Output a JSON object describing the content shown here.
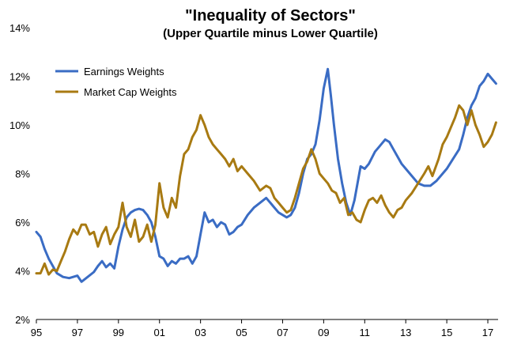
{
  "chart_data": {
    "type": "line",
    "title": "\"Inequality of Sectors\"",
    "subtitle": "(Upper Quartile minus Lower Quartile)",
    "xlabel": "",
    "ylabel": "",
    "xlim": [
      1995,
      2017.5
    ],
    "ylim": [
      2,
      14
    ],
    "x_ticks": [
      1995,
      1997,
      1999,
      2001,
      2003,
      2005,
      2007,
      2009,
      2011,
      2013,
      2015,
      2017
    ],
    "x_tick_labels": [
      "95",
      "97",
      "99",
      "01",
      "03",
      "05",
      "07",
      "09",
      "11",
      "13",
      "15",
      "17"
    ],
    "y_ticks": [
      2,
      4,
      6,
      8,
      10,
      12,
      14
    ],
    "y_tick_labels": [
      "2%",
      "4%",
      "6%",
      "8%",
      "10%",
      "12%",
      "14%"
    ],
    "grid": false,
    "legend_position": "top-left",
    "series": [
      {
        "name": "Earnings Weights",
        "color": "#3A6CC4",
        "points": [
          [
            1995.0,
            5.6
          ],
          [
            1995.2,
            5.4
          ],
          [
            1995.4,
            4.9
          ],
          [
            1995.6,
            4.5
          ],
          [
            1995.8,
            4.2
          ],
          [
            1996.0,
            3.9
          ],
          [
            1996.3,
            3.75
          ],
          [
            1996.6,
            3.7
          ],
          [
            1997.0,
            3.8
          ],
          [
            1997.2,
            3.55
          ],
          [
            1997.5,
            3.75
          ],
          [
            1997.8,
            3.95
          ],
          [
            1998.0,
            4.2
          ],
          [
            1998.2,
            4.4
          ],
          [
            1998.4,
            4.15
          ],
          [
            1998.6,
            4.3
          ],
          [
            1998.8,
            4.1
          ],
          [
            1999.0,
            5.0
          ],
          [
            1999.2,
            5.7
          ],
          [
            1999.4,
            6.2
          ],
          [
            1999.6,
            6.4
          ],
          [
            1999.8,
            6.5
          ],
          [
            2000.0,
            6.55
          ],
          [
            2000.2,
            6.5
          ],
          [
            2000.4,
            6.3
          ],
          [
            2000.6,
            6.0
          ],
          [
            2000.8,
            5.4
          ],
          [
            2001.0,
            4.6
          ],
          [
            2001.2,
            4.5
          ],
          [
            2001.4,
            4.2
          ],
          [
            2001.6,
            4.4
          ],
          [
            2001.8,
            4.3
          ],
          [
            2002.0,
            4.5
          ],
          [
            2002.2,
            4.5
          ],
          [
            2002.4,
            4.6
          ],
          [
            2002.6,
            4.3
          ],
          [
            2002.8,
            4.6
          ],
          [
            2003.0,
            5.5
          ],
          [
            2003.2,
            6.4
          ],
          [
            2003.4,
            6.0
          ],
          [
            2003.6,
            6.1
          ],
          [
            2003.8,
            5.8
          ],
          [
            2004.0,
            6.0
          ],
          [
            2004.2,
            5.9
          ],
          [
            2004.4,
            5.5
          ],
          [
            2004.6,
            5.6
          ],
          [
            2004.8,
            5.8
          ],
          [
            2005.0,
            5.9
          ],
          [
            2005.3,
            6.3
          ],
          [
            2005.6,
            6.6
          ],
          [
            2005.9,
            6.8
          ],
          [
            2006.2,
            7.0
          ],
          [
            2006.4,
            6.8
          ],
          [
            2006.6,
            6.6
          ],
          [
            2006.8,
            6.4
          ],
          [
            2007.0,
            6.3
          ],
          [
            2007.2,
            6.2
          ],
          [
            2007.4,
            6.3
          ],
          [
            2007.6,
            6.6
          ],
          [
            2007.8,
            7.2
          ],
          [
            2008.0,
            8.0
          ],
          [
            2008.2,
            8.6
          ],
          [
            2008.4,
            8.8
          ],
          [
            2008.6,
            9.2
          ],
          [
            2008.8,
            10.2
          ],
          [
            2009.0,
            11.5
          ],
          [
            2009.2,
            12.3
          ],
          [
            2009.35,
            11.2
          ],
          [
            2009.5,
            10.0
          ],
          [
            2009.7,
            8.6
          ],
          [
            2009.9,
            7.6
          ],
          [
            2010.1,
            6.8
          ],
          [
            2010.3,
            6.3
          ],
          [
            2010.5,
            6.9
          ],
          [
            2010.8,
            8.3
          ],
          [
            2011.0,
            8.2
          ],
          [
            2011.2,
            8.4
          ],
          [
            2011.5,
            8.9
          ],
          [
            2011.7,
            9.1
          ],
          [
            2012.0,
            9.4
          ],
          [
            2012.2,
            9.3
          ],
          [
            2012.4,
            9.0
          ],
          [
            2012.6,
            8.7
          ],
          [
            2012.8,
            8.4
          ],
          [
            2013.0,
            8.2
          ],
          [
            2013.3,
            7.9
          ],
          [
            2013.6,
            7.6
          ],
          [
            2013.9,
            7.5
          ],
          [
            2014.2,
            7.5
          ],
          [
            2014.5,
            7.7
          ],
          [
            2014.8,
            8.0
          ],
          [
            2015.0,
            8.2
          ],
          [
            2015.3,
            8.6
          ],
          [
            2015.6,
            9.0
          ],
          [
            2015.8,
            9.6
          ],
          [
            2016.0,
            10.3
          ],
          [
            2016.2,
            10.8
          ],
          [
            2016.4,
            11.1
          ],
          [
            2016.6,
            11.6
          ],
          [
            2016.8,
            11.8
          ],
          [
            2017.0,
            12.1
          ],
          [
            2017.2,
            11.9
          ],
          [
            2017.4,
            11.7
          ]
        ]
      },
      {
        "name": "Market Cap Weights",
        "color": "#A87A12",
        "points": [
          [
            1995.0,
            3.9
          ],
          [
            1995.2,
            3.9
          ],
          [
            1995.4,
            4.3
          ],
          [
            1995.6,
            3.85
          ],
          [
            1995.8,
            4.05
          ],
          [
            1996.0,
            4.0
          ],
          [
            1996.2,
            4.4
          ],
          [
            1996.4,
            4.8
          ],
          [
            1996.6,
            5.3
          ],
          [
            1996.8,
            5.7
          ],
          [
            1997.0,
            5.5
          ],
          [
            1997.2,
            5.9
          ],
          [
            1997.4,
            5.9
          ],
          [
            1997.6,
            5.5
          ],
          [
            1997.8,
            5.6
          ],
          [
            1998.0,
            5.0
          ],
          [
            1998.2,
            5.5
          ],
          [
            1998.4,
            5.8
          ],
          [
            1998.6,
            5.1
          ],
          [
            1998.8,
            5.5
          ],
          [
            1999.0,
            5.8
          ],
          [
            1999.2,
            6.8
          ],
          [
            1999.4,
            5.8
          ],
          [
            1999.6,
            5.4
          ],
          [
            1999.8,
            6.1
          ],
          [
            2000.0,
            5.2
          ],
          [
            2000.2,
            5.4
          ],
          [
            2000.4,
            5.9
          ],
          [
            2000.6,
            5.2
          ],
          [
            2000.8,
            5.9
          ],
          [
            2001.0,
            7.6
          ],
          [
            2001.2,
            6.6
          ],
          [
            2001.4,
            6.2
          ],
          [
            2001.6,
            7.0
          ],
          [
            2001.8,
            6.6
          ],
          [
            2002.0,
            7.9
          ],
          [
            2002.2,
            8.8
          ],
          [
            2002.4,
            9.0
          ],
          [
            2002.6,
            9.5
          ],
          [
            2002.8,
            9.8
          ],
          [
            2003.0,
            10.4
          ],
          [
            2003.2,
            10.0
          ],
          [
            2003.4,
            9.5
          ],
          [
            2003.6,
            9.2
          ],
          [
            2003.8,
            9.0
          ],
          [
            2004.0,
            8.8
          ],
          [
            2004.2,
            8.6
          ],
          [
            2004.4,
            8.3
          ],
          [
            2004.6,
            8.6
          ],
          [
            2004.8,
            8.1
          ],
          [
            2005.0,
            8.3
          ],
          [
            2005.3,
            8.0
          ],
          [
            2005.6,
            7.7
          ],
          [
            2005.9,
            7.3
          ],
          [
            2006.2,
            7.5
          ],
          [
            2006.4,
            7.4
          ],
          [
            2006.6,
            7.0
          ],
          [
            2006.8,
            6.8
          ],
          [
            2007.0,
            6.6
          ],
          [
            2007.2,
            6.4
          ],
          [
            2007.4,
            6.5
          ],
          [
            2007.6,
            7.0
          ],
          [
            2007.8,
            7.6
          ],
          [
            2008.0,
            8.2
          ],
          [
            2008.2,
            8.5
          ],
          [
            2008.4,
            9.0
          ],
          [
            2008.6,
            8.6
          ],
          [
            2008.8,
            8.0
          ],
          [
            2009.0,
            7.8
          ],
          [
            2009.2,
            7.6
          ],
          [
            2009.4,
            7.3
          ],
          [
            2009.6,
            7.2
          ],
          [
            2009.8,
            6.8
          ],
          [
            2010.0,
            7.0
          ],
          [
            2010.2,
            6.3
          ],
          [
            2010.4,
            6.4
          ],
          [
            2010.6,
            6.1
          ],
          [
            2010.8,
            6.0
          ],
          [
            2011.0,
            6.5
          ],
          [
            2011.2,
            6.9
          ],
          [
            2011.4,
            7.0
          ],
          [
            2011.6,
            6.8
          ],
          [
            2011.8,
            7.1
          ],
          [
            2012.0,
            6.7
          ],
          [
            2012.2,
            6.4
          ],
          [
            2012.4,
            6.2
          ],
          [
            2012.6,
            6.5
          ],
          [
            2012.8,
            6.6
          ],
          [
            2013.0,
            6.9
          ],
          [
            2013.3,
            7.2
          ],
          [
            2013.6,
            7.6
          ],
          [
            2013.9,
            8.0
          ],
          [
            2014.1,
            8.3
          ],
          [
            2014.3,
            7.9
          ],
          [
            2014.6,
            8.6
          ],
          [
            2014.8,
            9.2
          ],
          [
            2015.0,
            9.5
          ],
          [
            2015.2,
            9.9
          ],
          [
            2015.4,
            10.3
          ],
          [
            2015.6,
            10.8
          ],
          [
            2015.8,
            10.6
          ],
          [
            2016.0,
            10.0
          ],
          [
            2016.2,
            10.6
          ],
          [
            2016.4,
            10.0
          ],
          [
            2016.6,
            9.6
          ],
          [
            2016.8,
            9.1
          ],
          [
            2017.0,
            9.3
          ],
          [
            2017.2,
            9.6
          ],
          [
            2017.4,
            10.1
          ]
        ]
      }
    ]
  }
}
